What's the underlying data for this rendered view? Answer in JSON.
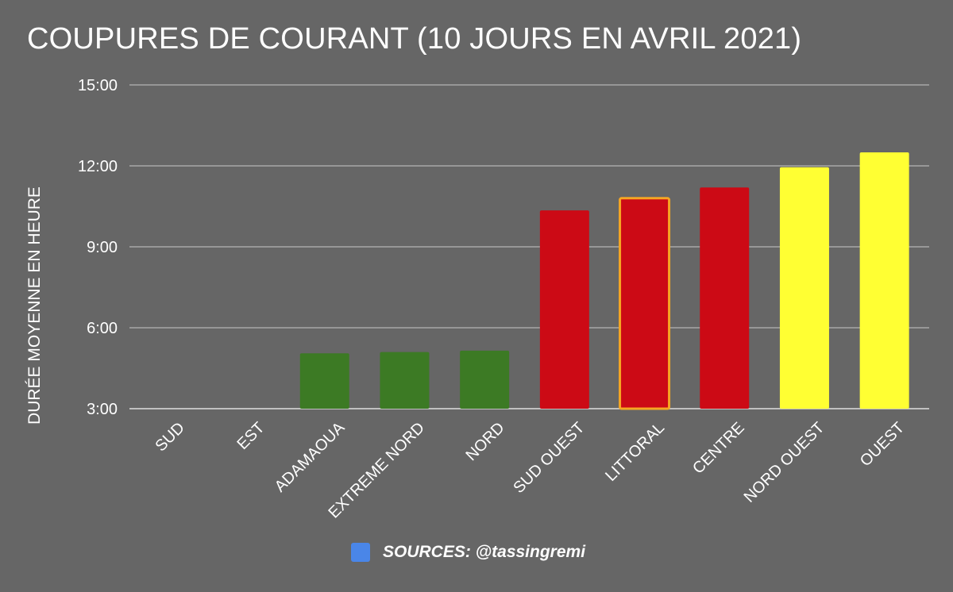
{
  "chart_data": {
    "type": "bar",
    "title": "COUPURES DE COURANT (10 JOURS EN AVRIL 2021)",
    "xlabel": "",
    "ylabel": "DURÉE MOYENNE EN HEURE",
    "y_unit": "hours",
    "ylim": [
      3,
      15
    ],
    "yticks": [
      3,
      6,
      9,
      12,
      15
    ],
    "ytick_labels": [
      "3:00",
      "6:00",
      "9:00",
      "12:00",
      "15:00"
    ],
    "grid": true,
    "categories": [
      "SUD",
      "EST",
      "ADAMAOUA",
      "EXTREME NORD",
      "NORD",
      "SUD OUEST",
      "LITTORAL",
      "CENTRE",
      "NORD OUEST",
      "OUEST"
    ],
    "values": [
      null,
      null,
      5.05,
      5.1,
      5.15,
      10.35,
      10.8,
      11.2,
      11.95,
      12.5
    ],
    "bar_colors": [
      "#3c7a24",
      "#3c7a24",
      "#3c7a24",
      "#3c7a24",
      "#3c7a24",
      "#cc0a15",
      "#cc0a15",
      "#cc0a15",
      "#ffff33",
      "#ffff33"
    ],
    "highlight_category": "LITTORAL",
    "highlight_outline_color": "#f5a623",
    "legend": {
      "position": "bottom",
      "entries": [
        {
          "label": "SOURCES: @tassingremi",
          "color": "#4a86e8"
        }
      ]
    }
  }
}
